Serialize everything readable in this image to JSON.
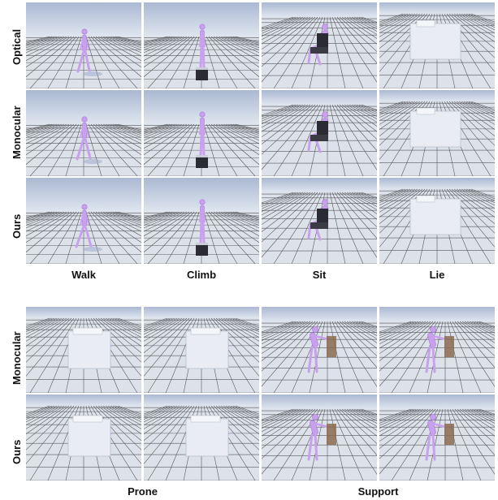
{
  "top": {
    "row_labels": [
      "Optical",
      "Monocular",
      "Ours"
    ],
    "col_labels": [
      "Walk",
      "Climb",
      "Sit",
      "Lie"
    ]
  },
  "bottom": {
    "row_labels": [
      "Monocular",
      "Ours"
    ],
    "group_labels": [
      "Prone",
      "Support"
    ]
  },
  "colors": {
    "sky_top": "#aab8d2",
    "sky_bottom": "#dfe6ef",
    "floor": "#dde2ea",
    "grid_line": "#2a2a2a",
    "character": "#c9a0ee",
    "prop_bed": "#e9edf3",
    "prop_dark": "#2b2b33",
    "prop_wood": "#8b6a4f"
  }
}
